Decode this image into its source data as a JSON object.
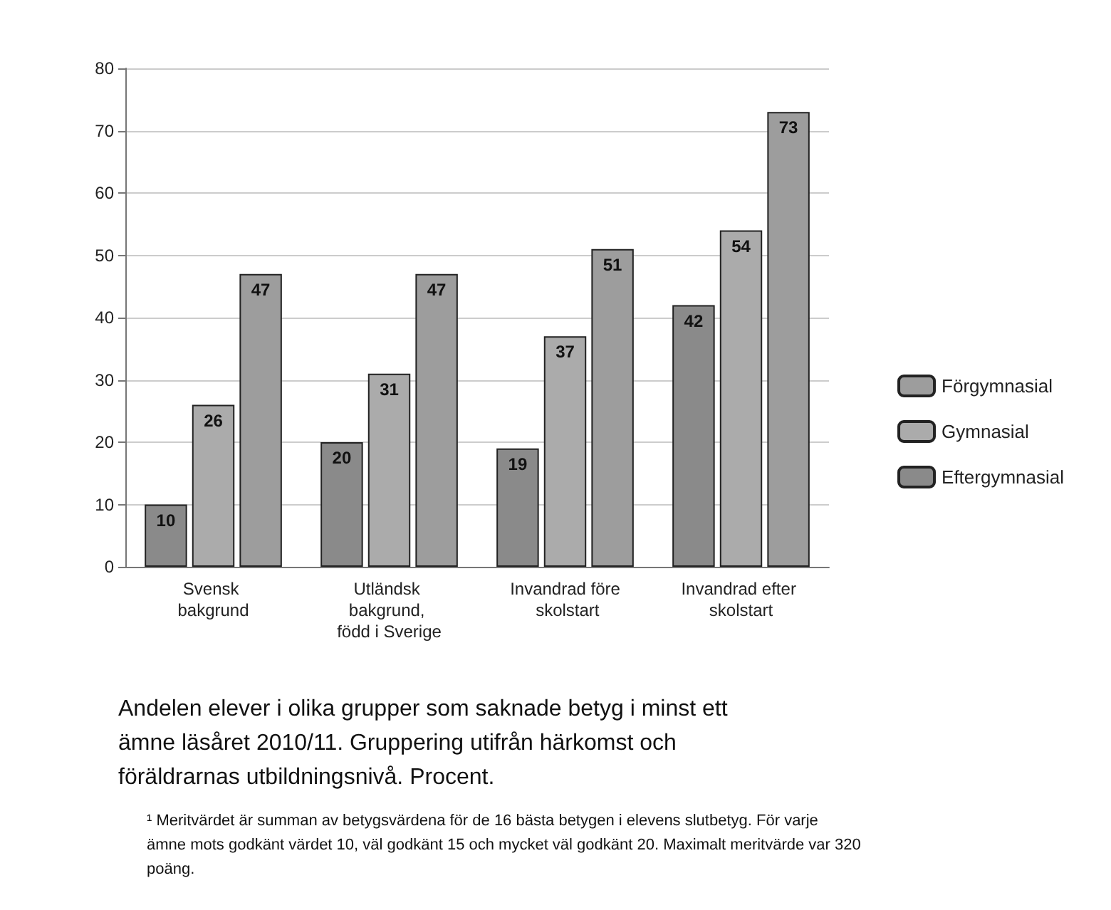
{
  "chart_data": {
    "type": "bar",
    "categories": [
      "Svensk bakgrund",
      "Utländsk bakgrund, född i Sverige",
      "Invandrad före skolstart",
      "Invandrad efter skolstart"
    ],
    "series": [
      {
        "name": "Eftergymnasial",
        "color": "#8a8a8a",
        "values": [
          10,
          20,
          19,
          42
        ]
      },
      {
        "name": "Gymnasial",
        "color": "#ababab",
        "values": [
          26,
          31,
          37,
          54
        ]
      },
      {
        "name": "Förgymnasial",
        "color": "#9d9d9d",
        "values": [
          47,
          47,
          51,
          73
        ]
      }
    ],
    "ylim": [
      0,
      80
    ],
    "yticks": [
      0,
      10,
      20,
      30,
      40,
      50,
      60,
      70,
      80
    ],
    "grid": "y",
    "legend": "right",
    "data_labels": true,
    "annotations": [
      "Andelen elever i olika grupper som saknade betyg i minst ett ämne läsåret 2010/11. Gruppering utifrån härkomst och föräldrarnas utbildningsnivå. Procent.",
      "¹ Meritvärdet är summan av betygsvärdena för de 16 bästa betygen i elevens slutbetyg. För varje ämne mots godkänt värdet 10, väl godkänt 15 och mycket väl godkänt 20. Maximalt meritvärde var 320 poäng."
    ]
  }
}
